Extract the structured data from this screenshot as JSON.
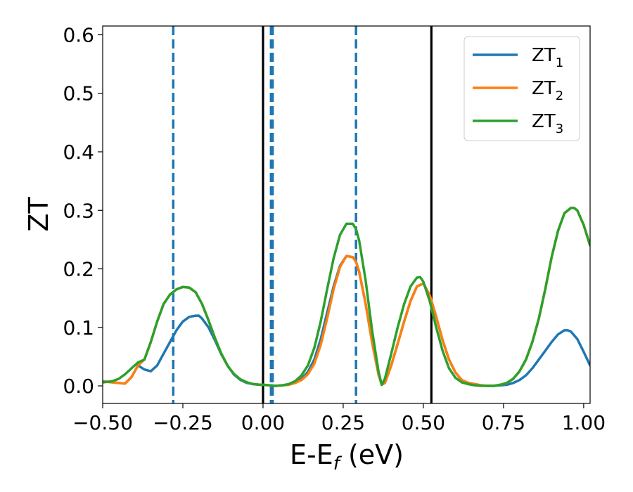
{
  "chart_data": {
    "type": "line",
    "xlabel": "E-E",
    "xlabel_sub": "f",
    "xlabel_unit": " (eV)",
    "ylabel": "ZT",
    "xlim": [
      -0.5,
      1.02
    ],
    "ylim": [
      -0.03,
      0.615
    ],
    "xticks": [
      -0.5,
      -0.25,
      0.0,
      0.25,
      0.5,
      0.75,
      1.0
    ],
    "xtick_labels": [
      "−0.50",
      "−0.25",
      "0.00",
      "0.25",
      "0.50",
      "0.75",
      "1.00"
    ],
    "yticks": [
      0.0,
      0.1,
      0.2,
      0.3,
      0.4,
      0.5,
      0.6
    ],
    "ytick_labels": [
      "0.0",
      "0.1",
      "0.2",
      "0.3",
      "0.4",
      "0.5",
      "0.6"
    ],
    "grid": false,
    "legend_position": "top-right",
    "vlines": [
      {
        "x": -0.28,
        "style": "dashed",
        "color": "#1f77b4"
      },
      {
        "x": 0.0,
        "style": "solid",
        "color": "#000000"
      },
      {
        "x": 0.025,
        "style": "dashed",
        "color": "#1f77b4"
      },
      {
        "x": 0.03,
        "style": "dashed",
        "color": "#1f77b4"
      },
      {
        "x": 0.29,
        "style": "dashed",
        "color": "#1f77b4"
      },
      {
        "x": 0.525,
        "style": "solid",
        "color": "#000000"
      }
    ],
    "series": [
      {
        "name": "ZT",
        "name_sub": "1",
        "color": "#1f77b4",
        "x": [
          -0.5,
          -0.47,
          -0.45,
          -0.43,
          -0.41,
          -0.39,
          -0.37,
          -0.35,
          -0.33,
          -0.31,
          -0.29,
          -0.27,
          -0.25,
          -0.23,
          -0.21,
          -0.2,
          -0.19,
          -0.17,
          -0.15,
          -0.13,
          -0.11,
          -0.09,
          -0.07,
          -0.05,
          -0.03,
          -0.01,
          0.0,
          0.02,
          0.04,
          0.06,
          0.08,
          0.1,
          0.12,
          0.14,
          0.16,
          0.18,
          0.2,
          0.22,
          0.24,
          0.26,
          0.28,
          0.29,
          0.3,
          0.32,
          0.34,
          0.36,
          0.37,
          0.38,
          0.4,
          0.42,
          0.44,
          0.46,
          0.48,
          0.5,
          0.52,
          0.54,
          0.56,
          0.58,
          0.6,
          0.62,
          0.64,
          0.66,
          0.68,
          0.7,
          0.72,
          0.74,
          0.76,
          0.78,
          0.8,
          0.82,
          0.84,
          0.86,
          0.88,
          0.9,
          0.92,
          0.94,
          0.95,
          0.96,
          0.98,
          1.0,
          1.02
        ],
        "y": [
          0.008,
          0.006,
          0.005,
          0.004,
          0.015,
          0.035,
          0.028,
          0.025,
          0.035,
          0.055,
          0.075,
          0.095,
          0.11,
          0.118,
          0.12,
          0.12,
          0.115,
          0.1,
          0.078,
          0.054,
          0.034,
          0.019,
          0.01,
          0.005,
          0.003,
          0.002,
          0.002,
          0.001,
          0.0,
          0.001,
          0.002,
          0.006,
          0.012,
          0.024,
          0.045,
          0.08,
          0.125,
          0.17,
          0.205,
          0.222,
          0.22,
          0.212,
          0.195,
          0.14,
          0.075,
          0.02,
          0.002,
          0.005,
          0.035,
          0.072,
          0.11,
          0.145,
          0.17,
          0.175,
          0.155,
          0.118,
          0.078,
          0.045,
          0.023,
          0.01,
          0.005,
          0.003,
          0.001,
          0.0,
          0.0,
          0.001,
          0.002,
          0.005,
          0.01,
          0.018,
          0.03,
          0.045,
          0.06,
          0.075,
          0.088,
          0.095,
          0.095,
          0.093,
          0.08,
          0.058,
          0.035
        ]
      },
      {
        "name": "ZT",
        "name_sub": "2",
        "color": "#ff7f0e",
        "x": [
          -0.5,
          -0.47,
          -0.45,
          -0.43,
          -0.41,
          -0.39,
          -0.37,
          -0.35,
          -0.33,
          -0.31,
          -0.29,
          -0.27,
          -0.25,
          -0.23,
          -0.21,
          -0.19,
          -0.17,
          -0.15,
          -0.13,
          -0.11,
          -0.09,
          -0.07,
          -0.05,
          -0.03,
          -0.01,
          0.0,
          0.02,
          0.04,
          0.06,
          0.08,
          0.1,
          0.12,
          0.14,
          0.16,
          0.18,
          0.2,
          0.22,
          0.24,
          0.26,
          0.28,
          0.29,
          0.3,
          0.32,
          0.34,
          0.36,
          0.37,
          0.38,
          0.4,
          0.42,
          0.44,
          0.46,
          0.48,
          0.5,
          0.52,
          0.54,
          0.56,
          0.58,
          0.6,
          0.62,
          0.64,
          0.66,
          0.68,
          0.7,
          0.72,
          0.74,
          0.76,
          0.78,
          0.8,
          0.82,
          0.84,
          0.86,
          0.88,
          0.9,
          0.92,
          0.94,
          0.96,
          0.97,
          0.98,
          1.0,
          1.02
        ],
        "y": [
          0.008,
          0.006,
          0.005,
          0.004,
          0.015,
          0.035,
          0.045,
          0.075,
          0.11,
          0.14,
          0.156,
          0.165,
          0.169,
          0.168,
          0.16,
          0.14,
          0.112,
          0.082,
          0.055,
          0.034,
          0.02,
          0.011,
          0.006,
          0.003,
          0.002,
          0.002,
          0.001,
          0.0,
          0.001,
          0.002,
          0.005,
          0.01,
          0.02,
          0.038,
          0.07,
          0.115,
          0.165,
          0.203,
          0.222,
          0.22,
          0.212,
          0.195,
          0.14,
          0.075,
          0.02,
          0.002,
          0.005,
          0.035,
          0.072,
          0.11,
          0.145,
          0.17,
          0.175,
          0.155,
          0.118,
          0.078,
          0.045,
          0.023,
          0.01,
          0.005,
          0.003,
          0.001,
          0.0,
          0.0,
          0.002,
          0.005,
          0.012,
          0.025,
          0.045,
          0.075,
          0.115,
          0.165,
          0.22,
          0.265,
          0.295,
          0.304,
          0.304,
          0.3,
          0.275,
          0.24
        ]
      },
      {
        "name": "ZT",
        "name_sub": "3",
        "color": "#2ca02c",
        "x": [
          -0.5,
          -0.47,
          -0.45,
          -0.43,
          -0.41,
          -0.39,
          -0.37,
          -0.35,
          -0.33,
          -0.31,
          -0.29,
          -0.27,
          -0.25,
          -0.23,
          -0.21,
          -0.19,
          -0.17,
          -0.15,
          -0.13,
          -0.11,
          -0.09,
          -0.07,
          -0.05,
          -0.03,
          -0.01,
          0.0,
          0.02,
          0.04,
          0.06,
          0.08,
          0.1,
          0.12,
          0.14,
          0.16,
          0.18,
          0.2,
          0.22,
          0.24,
          0.26,
          0.28,
          0.29,
          0.3,
          0.32,
          0.34,
          0.36,
          0.37,
          0.38,
          0.4,
          0.42,
          0.44,
          0.46,
          0.48,
          0.49,
          0.5,
          0.52,
          0.54,
          0.56,
          0.58,
          0.6,
          0.62,
          0.64,
          0.66,
          0.68,
          0.7,
          0.72,
          0.74,
          0.76,
          0.78,
          0.8,
          0.82,
          0.84,
          0.86,
          0.88,
          0.9,
          0.92,
          0.94,
          0.96,
          0.97,
          0.98,
          1.0,
          1.02
        ],
        "y": [
          0.006,
          0.008,
          0.012,
          0.02,
          0.03,
          0.04,
          0.045,
          0.075,
          0.11,
          0.14,
          0.156,
          0.165,
          0.169,
          0.168,
          0.16,
          0.14,
          0.112,
          0.082,
          0.055,
          0.034,
          0.02,
          0.011,
          0.006,
          0.003,
          0.002,
          0.002,
          0.001,
          0.0,
          0.001,
          0.003,
          0.008,
          0.018,
          0.035,
          0.065,
          0.11,
          0.165,
          0.218,
          0.258,
          0.277,
          0.277,
          0.268,
          0.248,
          0.18,
          0.095,
          0.025,
          0.002,
          0.012,
          0.055,
          0.1,
          0.14,
          0.17,
          0.185,
          0.186,
          0.178,
          0.145,
          0.1,
          0.06,
          0.03,
          0.014,
          0.006,
          0.003,
          0.001,
          0.0,
          0.0,
          0.0,
          0.002,
          0.005,
          0.012,
          0.025,
          0.045,
          0.075,
          0.115,
          0.165,
          0.22,
          0.265,
          0.295,
          0.304,
          0.304,
          0.3,
          0.275,
          0.24
        ]
      }
    ]
  }
}
